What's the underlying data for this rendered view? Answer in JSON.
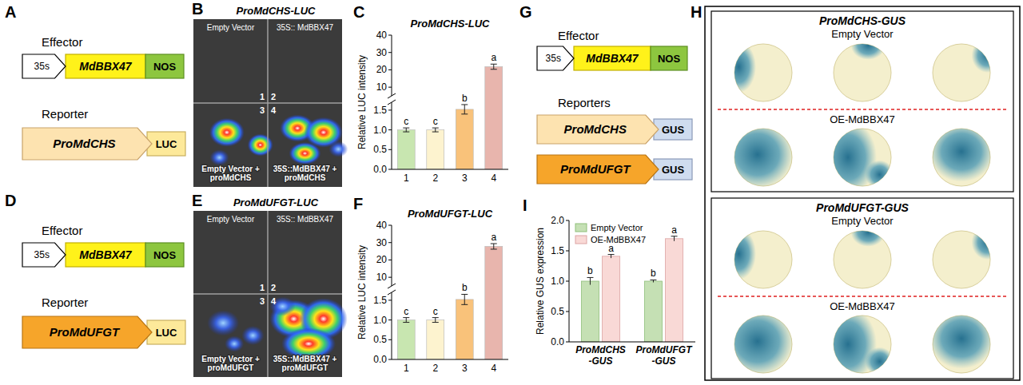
{
  "panels": {
    "A": {
      "letter": "A",
      "effector_label": "Effector",
      "effector": [
        "35s",
        "MdBBX47",
        "NOS"
      ],
      "reporter_label": "Reporter",
      "reporter": [
        "ProMdCHS",
        "LUC"
      ]
    },
    "B": {
      "letter": "B",
      "title": "ProMdCHS-LUC",
      "quadrants": [
        "Empty Vector",
        "35S:: MdBBX47",
        "Empty Vector + proMdCHS",
        "35S::MdBBX47 + proMdCHS"
      ],
      "numbers": [
        1,
        2,
        3,
        4
      ]
    },
    "D": {
      "letter": "D",
      "effector_label": "Effector",
      "effector": [
        "35s",
        "MdBBX47",
        "NOS"
      ],
      "reporter_label": "Reporter",
      "reporter": [
        "ProMdUFGT",
        "LUC"
      ]
    },
    "E": {
      "letter": "E",
      "title": "ProMdUFGT-LUC",
      "quadrants": [
        "Empty Vector",
        "35S:: MdBBX47",
        "Empty Vector + proMdUFGT",
        "35S::MdBBX47 + proMdUFGT"
      ],
      "numbers": [
        1,
        2,
        3,
        4
      ]
    },
    "G": {
      "letter": "G",
      "effector_label": "Effector",
      "effector": [
        "35s",
        "MdBBX47",
        "NOS"
      ],
      "reporter_label": "Reporters",
      "reporters": [
        [
          "ProMdCHS",
          "GUS"
        ],
        [
          "ProMdUFGT",
          "GUS"
        ]
      ]
    },
    "H": {
      "letter": "H",
      "groups": [
        {
          "title": "ProMdCHS-GUS",
          "rows": [
            "Empty Vector",
            "OE-MdBBX47"
          ]
        },
        {
          "title": "ProMdUFGT-GUS",
          "rows": [
            "Empty Vector",
            "OE-MdBBX47"
          ]
        }
      ]
    }
  },
  "chart_data": [
    {
      "letter": "C",
      "type": "bar",
      "title": "ProMdCHS-LUC",
      "y_label": "Relative LUC intensity",
      "categories": [
        "1",
        "2",
        "3",
        "4"
      ],
      "values": [
        1.0,
        1.0,
        1.52,
        21.8
      ],
      "errors": [
        0.05,
        0.05,
        0.12,
        1.5
      ],
      "significance": [
        "c",
        "c",
        "b",
        "a"
      ],
      "colors": [
        "#c8e6b0",
        "#fdf3cf",
        "#f9c27a",
        "#e8b5ad"
      ],
      "ylim": [
        0,
        40
      ],
      "y_break": [
        1.7,
        5
      ],
      "yticks": [
        {
          "value": 0,
          "label": "0.0"
        },
        {
          "value": 0.5,
          "label": "0.5"
        },
        {
          "value": 1,
          "label": "1.0"
        },
        {
          "value": 1.5,
          "label": "1.5"
        },
        10,
        20,
        30,
        40
      ]
    },
    {
      "letter": "F",
      "type": "bar",
      "title": "ProMdUFGT-LUC",
      "y_label": "Relative LUC intensity",
      "categories": [
        "1",
        "2",
        "3",
        "4"
      ],
      "values": [
        1.0,
        1.0,
        1.52,
        27.8
      ],
      "errors": [
        0.06,
        0.06,
        0.13,
        1.6
      ],
      "significance": [
        "c",
        "c",
        "b",
        "a"
      ],
      "colors": [
        "#c8e6b0",
        "#fdf3cf",
        "#f9c27a",
        "#e8b5ad"
      ],
      "ylim": [
        0,
        40
      ],
      "y_break": [
        1.7,
        5
      ],
      "yticks": [
        {
          "value": 0,
          "label": "0.0"
        },
        {
          "value": 0.5,
          "label": "0.5"
        },
        {
          "value": 1,
          "label": "1.0"
        },
        {
          "value": 1.5,
          "label": "1.5"
        },
        10,
        20,
        30,
        40
      ]
    },
    {
      "letter": "I",
      "type": "bar",
      "y_label": "Relative GUS expression",
      "categories": [
        "ProMdCHS-GUS",
        "ProMdUFGT-GUS"
      ],
      "series": [
        {
          "name": "Empty Vector",
          "color": "#c5e0b4",
          "values": [
            1.0,
            1.0
          ],
          "errors": [
            0.06,
            0.02
          ],
          "significance": [
            "b",
            "b"
          ]
        },
        {
          "name": "OE-MdBBX47",
          "color": "#f9d9d6",
          "values": [
            1.41,
            1.7
          ],
          "errors": [
            0.03,
            0.04
          ],
          "significance": [
            "a",
            "a"
          ]
        }
      ],
      "ylim": [
        0,
        2
      ],
      "yticks": [
        {
          "value": 0,
          "label": "0.0"
        },
        {
          "value": 0.5,
          "label": "0.5"
        },
        {
          "value": 1,
          "label": "1.0"
        },
        {
          "value": 1.5,
          "label": "1.5"
        },
        {
          "value": 2,
          "label": "2.0"
        }
      ],
      "legend": "top-left"
    }
  ]
}
